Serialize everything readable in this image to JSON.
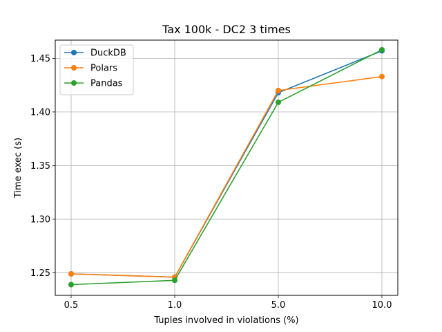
{
  "chart_data": {
    "type": "line",
    "title": "Tax 100k - DC2 3 times",
    "xlabel": "Tuples involved in violations (%)",
    "ylabel": "Time exec (s)",
    "categories": [
      "0.5",
      "1.0",
      "5.0",
      "10.0"
    ],
    "ylim": [
      1.229,
      1.467
    ],
    "yticks": [
      "1.25",
      "1.30",
      "1.35",
      "1.40",
      "1.45"
    ],
    "grid": true,
    "legend_position": "top-left",
    "series": [
      {
        "name": "DuckDB",
        "color": "#1f77b4",
        "values": [
          1.249,
          1.246,
          1.418,
          1.457
        ]
      },
      {
        "name": "Polars",
        "color": "#ff7f0e",
        "values": [
          1.249,
          1.246,
          1.42,
          1.433
        ]
      },
      {
        "name": "Pandas",
        "color": "#2ca02c",
        "values": [
          1.239,
          1.243,
          1.409,
          1.458
        ]
      }
    ]
  }
}
